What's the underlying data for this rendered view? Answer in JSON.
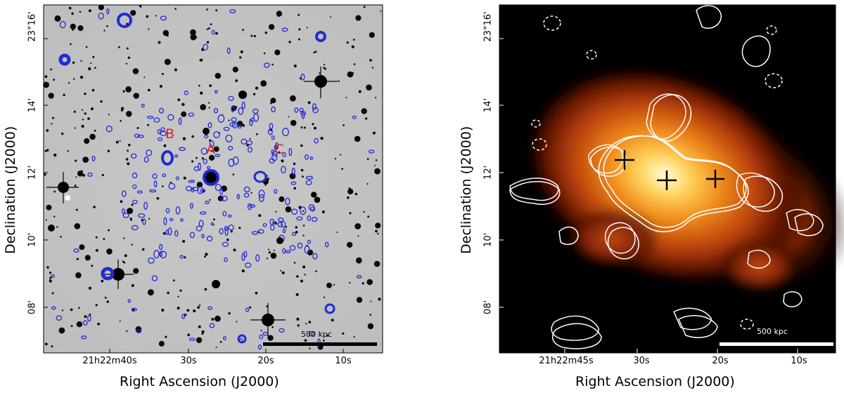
{
  "left_panel": {
    "xlabel": "Right Ascension (J2000)",
    "ylabel": "Declination (J2000)",
    "xticks": [
      "21h22m40s",
      "30s",
      "20s",
      "10s"
    ],
    "yticks": [
      "23°16'",
      "14'",
      "12'",
      "10'",
      "08'"
    ],
    "scalebar_label": "500 kpc",
    "source_labels": [
      "A",
      "B",
      "C"
    ],
    "contour_color": "#1f2bd6",
    "label_color": "#e02020"
  },
  "right_panel": {
    "xlabel": "Right Ascension (J2000)",
    "ylabel": "Declination (J2000)",
    "xticks": [
      "21h22m45s",
      "30s",
      "20s",
      "10s"
    ],
    "yticks": [
      "23°16'",
      "14'",
      "12'",
      "10'",
      "08'"
    ],
    "scalebar_label": "500 kpc",
    "contour_color": "#ffffff"
  }
}
